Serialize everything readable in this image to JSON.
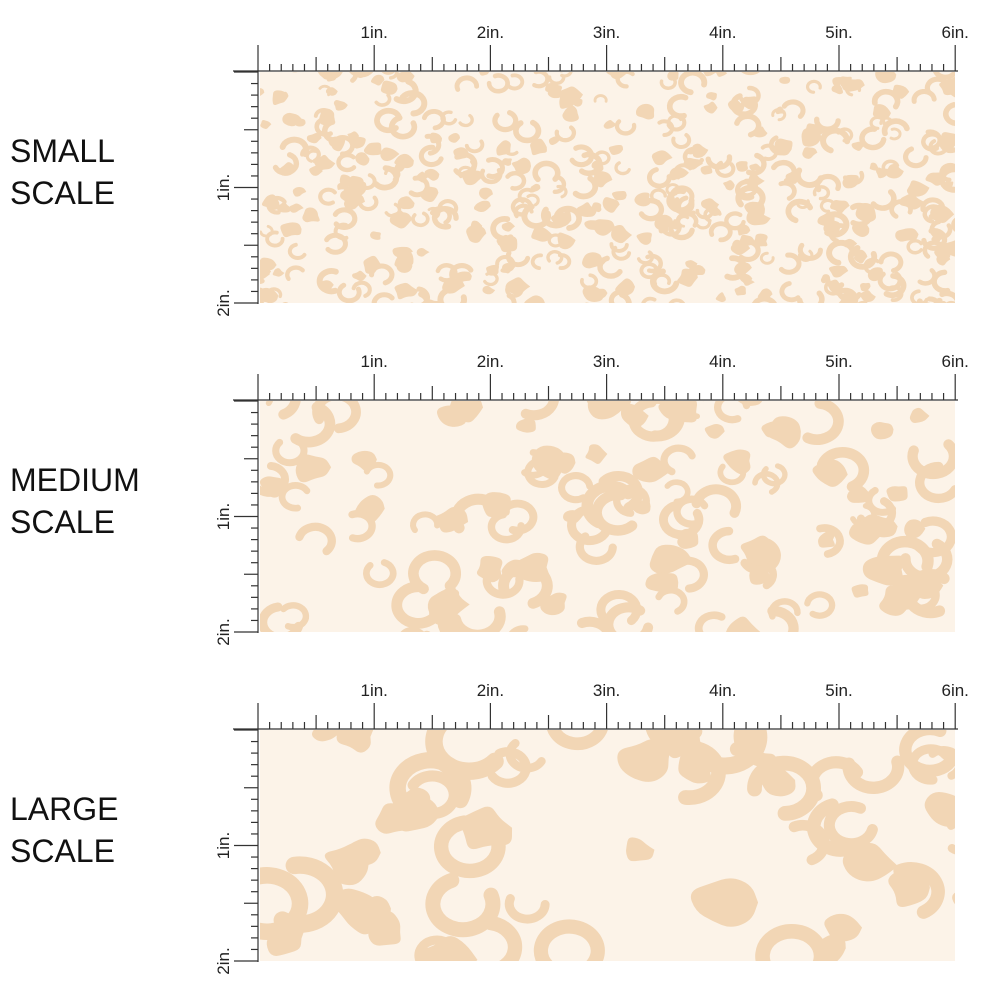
{
  "panels": [
    {
      "label": [
        "SMALL",
        "SCALE"
      ],
      "top_ruler": [
        "1in.",
        "2in.",
        "3in.",
        "4in.",
        "5in.",
        "6in."
      ],
      "left_ruler": [
        "1in.",
        "2in."
      ]
    },
    {
      "label": [
        "MEDIUM",
        "SCALE"
      ],
      "top_ruler": [
        "1in.",
        "2in.",
        "3in.",
        "4in.",
        "5in.",
        "6in."
      ],
      "left_ruler": [
        "1in.",
        "2in."
      ]
    },
    {
      "label": [
        "LARGE",
        "SCALE"
      ],
      "top_ruler": [
        "1in.",
        "2in.",
        "3in.",
        "4in.",
        "5in.",
        "6in."
      ],
      "left_ruler": [
        "1in.",
        "2in."
      ]
    }
  ]
}
